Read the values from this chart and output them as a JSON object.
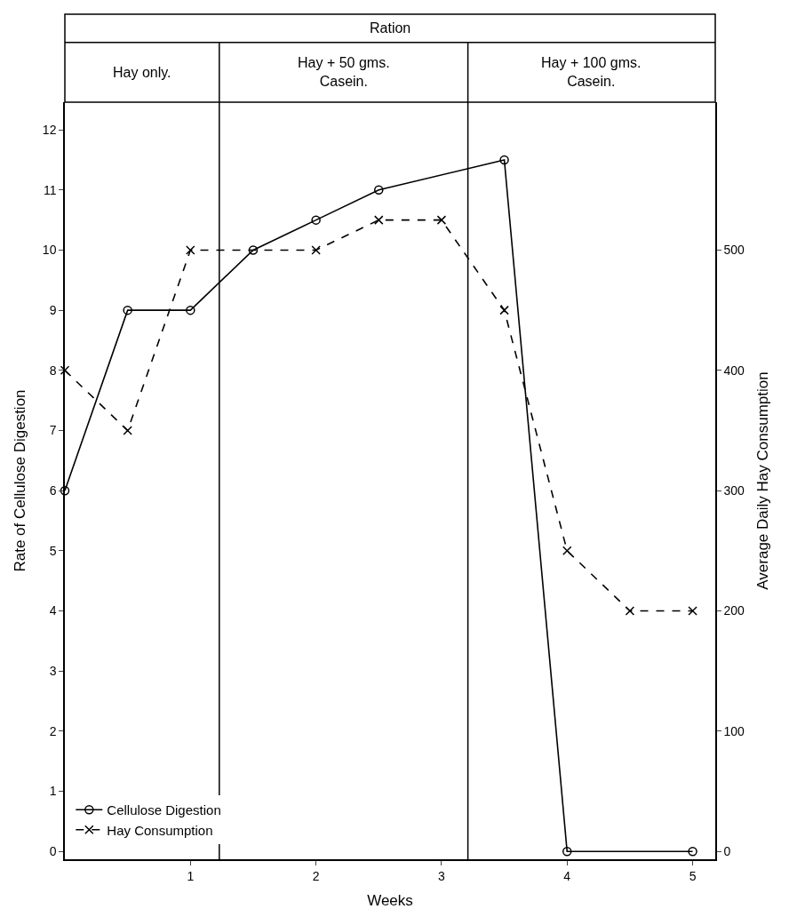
{
  "chart_data": {
    "type": "line",
    "xlabel": "Weeks",
    "ylabel": "Rate of Cellulose Digestion",
    "y2label": "Average Daily Hay Consumption",
    "annotations": [
      "Ration",
      "Hay only.",
      "Hay + 50 gms.\nCasein.",
      "Hay + 100 gms.\nCasein."
    ],
    "series": [
      {
        "name": "Cellulose Digestion",
        "color": "#000000",
        "marker": "circle",
        "line_style": "solid",
        "x": [
          0,
          0.5,
          1,
          1.5,
          2,
          2.5,
          3.5,
          4,
          5
        ],
        "values": [
          6,
          9,
          9,
          10,
          10.5,
          11,
          11.5,
          0,
          0
        ]
      },
      {
        "name": "Hay Consumption",
        "color": "#000000",
        "marker": "cross",
        "line_style": "dashed",
        "axis": "y2",
        "x": [
          0,
          0.5,
          1,
          2,
          2.5,
          3,
          3.5,
          4,
          4.5,
          5
        ],
        "values": [
          400,
          350,
          500,
          500,
          525,
          525,
          450,
          250,
          200,
          200
        ]
      }
    ],
    "xlim": [
      0,
      5.18
    ],
    "xticks": [
      1,
      2,
      3,
      4,
      5
    ],
    "ylim": [
      -0.13,
      12.46
    ],
    "yticks": [
      0,
      1,
      2,
      3,
      4,
      5,
      6,
      7,
      8,
      9,
      10,
      11,
      12
    ],
    "y2lim": [
      -6.5,
      623
    ],
    "y2ticks": [
      0,
      100,
      200,
      300,
      400,
      500
    ],
    "ref_lines": [
      {
        "axis": "x",
        "value": 1.23
      },
      {
        "axis": "x",
        "value": 3.21
      }
    ],
    "legend": "bottom left"
  }
}
